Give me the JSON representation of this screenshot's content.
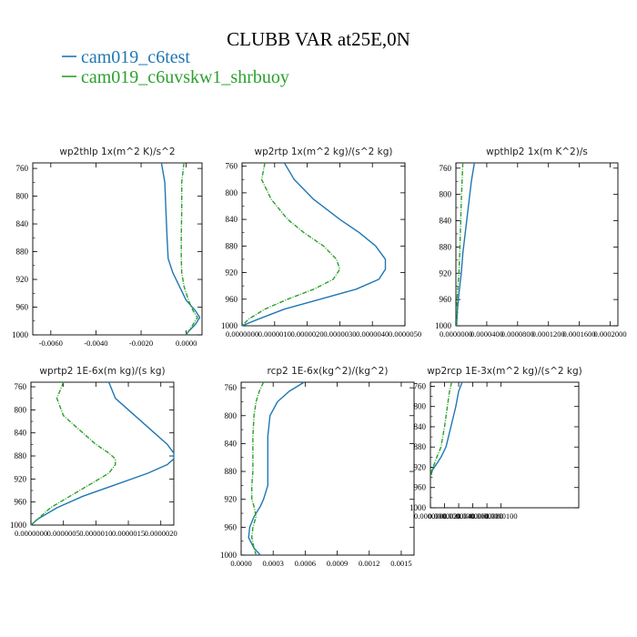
{
  "figure": {
    "title": "CLUBB VAR at25E,0N",
    "legend": [
      {
        "label": "cam019_c6test",
        "color": "#1f77b4"
      },
      {
        "label": "cam019_c6uvskw1_shrbuoy",
        "color": "#2ca02c"
      }
    ]
  },
  "chart_data": [
    {
      "type": "line",
      "title": "wp2thlp   1x(m^2 K)/s^2",
      "xticks": [
        "-0.0060",
        "-0.0040",
        "-0.0020",
        "0.0000"
      ],
      "xtick_values": [
        -0.006,
        -0.004,
        -0.002,
        0.0
      ],
      "xlim": [
        -0.0068,
        0.0007
      ],
      "yticks": [
        "760",
        "800",
        "840",
        "880",
        "920",
        "960",
        "1000"
      ],
      "ylim": [
        752,
        1000
      ],
      "y": [
        752,
        780,
        820,
        860,
        890,
        910,
        930,
        950,
        965,
        975,
        985,
        995,
        1000
      ],
      "series": [
        {
          "name": "cam019_c6test",
          "color": "#1f77b4",
          "dash": false,
          "values": [
            -0.0011,
            -0.00095,
            -0.0009,
            -0.00085,
            -0.0008,
            -0.0006,
            -0.0003,
            0.0,
            0.0004,
            0.0006,
            0.0004,
            0.0001,
            0.0
          ]
        },
        {
          "name": "cam019_c6uvskw1_shrbuoy",
          "color": "#2ca02c",
          "dash": true,
          "values": [
            -0.0001,
            -0.0002,
            -0.0002,
            -0.00022,
            -0.00022,
            -0.0002,
            -0.0001,
            0.0001,
            0.0003,
            0.0005,
            0.0003,
            0.0001,
            0.0
          ]
        }
      ]
    },
    {
      "type": "line",
      "title": "wp2rtp   1x(m^2 kg)/(s^2 kg)",
      "xticks": [
        "0.0000000",
        "0.0000010",
        "0.0000020",
        "0.0000030",
        "0.0000040",
        "0.0000050"
      ],
      "xtick_values": [
        0.0,
        1e-06,
        2e-06,
        3e-06,
        4e-06,
        5e-06
      ],
      "xlim": [
        0.0,
        5e-06
      ],
      "yticks": [
        "760",
        "800",
        "840",
        "880",
        "920",
        "960",
        "1000"
      ],
      "ylim": [
        755,
        1000
      ],
      "y": [
        755,
        780,
        810,
        840,
        860,
        880,
        900,
        915,
        930,
        945,
        960,
        975,
        990,
        1000
      ],
      "series": [
        {
          "name": "cam019_c6test",
          "color": "#1f77b4",
          "dash": false,
          "values": [
            1.3e-06,
            1.6e-06,
            2.2e-06,
            3e-06,
            3.6e-06,
            4.1e-06,
            4.4e-06,
            4.4e-06,
            4.2e-06,
            3.5e-06,
            2.4e-06,
            1.3e-06,
            5e-07,
            0.0
          ]
        },
        {
          "name": "cam019_c6uvskw1_shrbuoy",
          "color": "#2ca02c",
          "dash": true,
          "values": [
            7e-07,
            6e-07,
            9e-07,
            1.4e-06,
            1.9e-06,
            2.5e-06,
            2.9e-06,
            3e-06,
            2.8e-06,
            2.2e-06,
            1.4e-06,
            7e-07,
            2e-07,
            0.0
          ]
        }
      ]
    },
    {
      "type": "line",
      "title": "wpthlp2   1x(m K^2)/s",
      "xticks": [
        "0.0000000",
        "0.0000400",
        "0.0000800",
        "0.0001200",
        "0.0001600",
        "0.0002000"
      ],
      "xtick_values": [
        0.0,
        4e-05,
        8e-05,
        0.00012,
        0.00016,
        0.0002
      ],
      "xlim": [
        0.0,
        0.00021
      ],
      "yticks": [
        "760",
        "800",
        "840",
        "880",
        "920",
        "960",
        "1000"
      ],
      "ylim": [
        752,
        1000
      ],
      "y": [
        752,
        780,
        810,
        850,
        890,
        920,
        950,
        975,
        1000
      ],
      "series": [
        {
          "name": "cam019_c6test",
          "color": "#1f77b4",
          "dash": false,
          "values": [
            2.4e-05,
            2e-05,
            1.7e-05,
            1.3e-05,
            9e-06,
            7e-06,
            4e-06,
            2e-06,
            1e-06
          ]
        },
        {
          "name": "cam019_c6uvskw1_shrbuoy",
          "color": "#2ca02c",
          "dash": true,
          "values": [
            9e-06,
            8e-06,
            7e-06,
            6e-06,
            5e-06,
            4e-06,
            2e-06,
            1e-06,
            1e-06
          ]
        }
      ]
    },
    {
      "type": "line",
      "title": "wprtp2   1E-6x(m kg)/(s kg)",
      "xticks": [
        "0.0000000",
        "0.0000005",
        "0.0000010",
        "0.0000015",
        "0.0000020"
      ],
      "xtick_values": [
        0.0,
        5e-07,
        1e-06,
        1.5e-06,
        2e-06
      ],
      "xlim": [
        0.0,
        2.2e-06
      ],
      "yticks": [
        "760",
        "800",
        "840",
        "880",
        "920",
        "960",
        "1000"
      ],
      "ylim": [
        752,
        1000
      ],
      "y": [
        752,
        780,
        810,
        840,
        860,
        875,
        885,
        895,
        910,
        930,
        950,
        970,
        990,
        1000
      ],
      "series": [
        {
          "name": "cam019_c6test",
          "color": "#1f77b4",
          "dash": false,
          "values": [
            1.2e-06,
            1.3e-06,
            1.6e-06,
            1.9e-06,
            2.1e-06,
            2.2e-06,
            2.2e-06,
            2.1e-06,
            1.8e-06,
            1.3e-06,
            8e-07,
            4e-07,
            1e-07,
            0.0
          ]
        },
        {
          "name": "cam019_c6uvskw1_shrbuoy",
          "color": "#2ca02c",
          "dash": true,
          "values": [
            5e-07,
            4e-07,
            5e-07,
            8e-07,
            1e-06,
            1.2e-06,
            1.3e-06,
            1.3e-06,
            1.2e-06,
            9e-07,
            6e-07,
            3e-07,
            1e-07,
            0.0
          ]
        }
      ]
    },
    {
      "type": "line",
      "title": "rcp2   1E-6x(kg^2)/(kg^2)",
      "xticks": [
        "0.0000",
        "0.0003",
        "0.0006",
        "0.0009",
        "0.0012",
        "0.0015"
      ],
      "xtick_values": [
        0.0,
        0.0003,
        0.0006,
        0.0009,
        0.0012,
        0.0015
      ],
      "xlim": [
        0.0,
        0.00162
      ],
      "yticks": [
        "760",
        "800",
        "840",
        "880",
        "920",
        "960",
        "1000"
      ],
      "ylim": [
        752,
        1000
      ],
      "y": [
        752,
        765,
        780,
        800,
        830,
        860,
        880,
        900,
        920,
        930,
        945,
        960,
        975,
        990,
        1000
      ],
      "series": [
        {
          "name": "cam019_c6test",
          "color": "#1f77b4",
          "dash": false,
          "values": [
            0.00059,
            0.00045,
            0.00034,
            0.00027,
            0.00025,
            0.00025,
            0.00025,
            0.00025,
            0.00021,
            0.00018,
            0.00012,
            8e-05,
            7e-05,
            0.00012,
            0.00018
          ]
        },
        {
          "name": "cam019_c6uvskw1_shrbuoy",
          "color": "#2ca02c",
          "dash": true,
          "values": [
            0.00021,
            0.00017,
            0.00014,
            0.00012,
            0.00011,
            0.00011,
            0.00011,
            0.0001,
            0.0001,
            0.00012,
            0.00014,
            0.00011,
            0.0001,
            0.00012,
            0.00014
          ]
        }
      ]
    },
    {
      "type": "line",
      "title": "wp2rcp   1E-3x(m^2 kg)/(s^2 kg)",
      "xticks": [
        "0.0000000",
        "0.0000020",
        "0.0000040",
        "0.0000060",
        "0.0000080",
        "0.0000100"
      ],
      "xtick_values": [
        0.0,
        2e-06,
        4e-06,
        6e-06,
        8e-06,
        1e-05
      ],
      "xlim": [
        0.0,
        2.1e-05
      ],
      "yticks": [
        "760",
        "800",
        "840",
        "880",
        "920",
        "960",
        "1000"
      ],
      "ylim": [
        752,
        1000
      ],
      "y": [
        752,
        770,
        800,
        840,
        880,
        900,
        915,
        925,
        935
      ],
      "series": [
        {
          "name": "cam019_c6test",
          "color": "#1f77b4",
          "dash": false,
          "values": [
            4.5e-06,
            4e-06,
            3.6e-06,
            2.9e-06,
            2.2e-06,
            1.5e-06,
            8e-07,
            3e-07,
            1e-07
          ]
        },
        {
          "name": "cam019_c6uvskw1_shrbuoy",
          "color": "#2ca02c",
          "dash": true,
          "values": [
            3e-06,
            2.7e-06,
            2.4e-06,
            2e-06,
            1.5e-06,
            9e-07,
            5e-07,
            2e-07,
            1e-07
          ]
        }
      ]
    }
  ]
}
